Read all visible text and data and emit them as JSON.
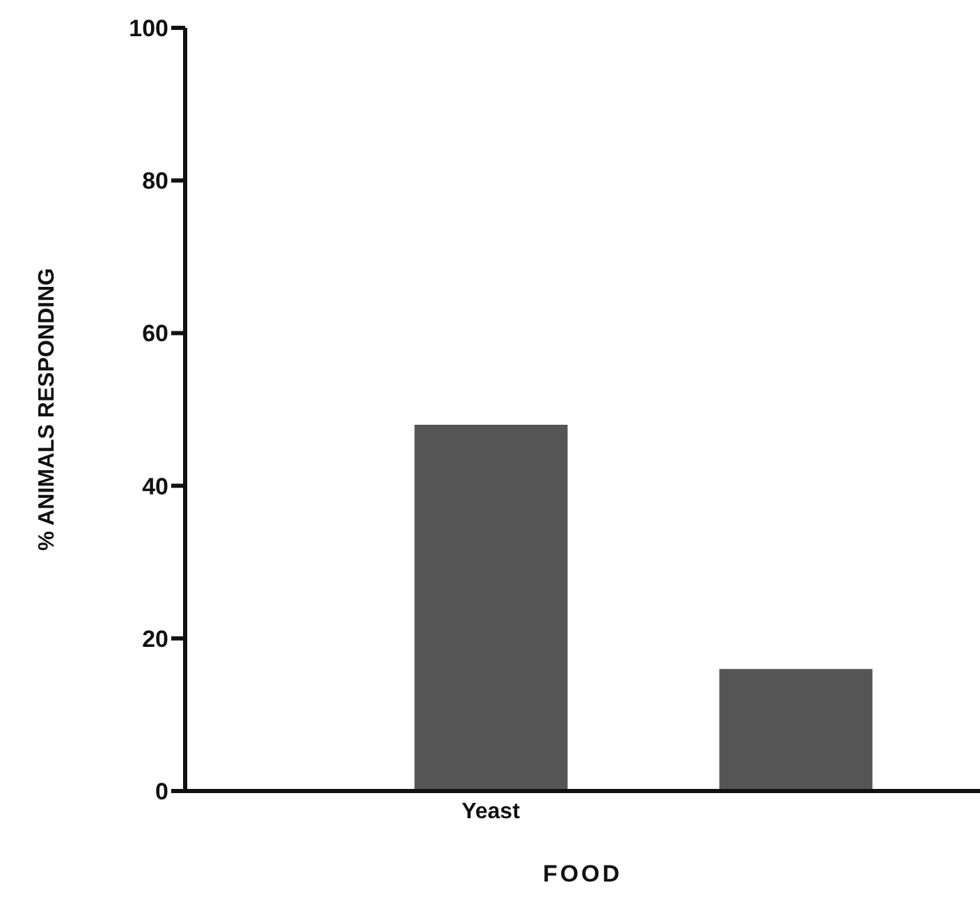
{
  "chart_data": {
    "type": "bar",
    "xlabel": "FOOD",
    "ylabel": "% ANIMALS RESPONDING",
    "categories": [
      "Yeast",
      null
    ],
    "values": [
      48,
      16
    ],
    "color": "#555555",
    "ylim": [
      0,
      100
    ],
    "yticks": [
      0,
      20,
      40,
      60,
      80,
      100
    ],
    "grid": false,
    "legend": false
  }
}
